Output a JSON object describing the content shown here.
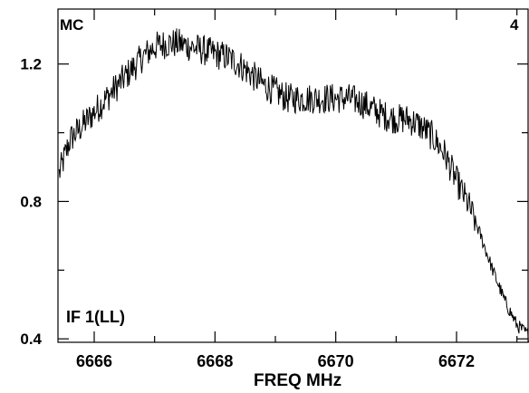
{
  "annotations": {
    "top_left": "MC",
    "top_right": "4",
    "bottom_left": "IF 1(LL)"
  },
  "chart_data": {
    "type": "line",
    "title": "",
    "xlabel": "FREQ MHz",
    "ylabel": "",
    "xlim": [
      6665.4,
      6673.2
    ],
    "ylim": [
      0.39,
      1.36
    ],
    "x_ticks": [
      6666,
      6668,
      6670,
      6672
    ],
    "x_tick_labels": [
      "6666",
      "6668",
      "6670",
      "6672"
    ],
    "x_minor_ticks": [
      6667,
      6669,
      6671,
      6673
    ],
    "y_ticks": [
      0.4,
      0.8,
      1.2
    ],
    "y_tick_labels": [
      "0.4",
      "0.8",
      "1.2"
    ],
    "y_minor_ticks": [
      0.6,
      1.0
    ],
    "grid": false,
    "series": [
      {
        "color": "#000000",
        "x": [
          6665.42,
          6665.6,
          6665.8,
          6666.0,
          6666.2,
          6666.4,
          6666.6,
          6666.8,
          6667.0,
          6667.2,
          6667.4,
          6667.6,
          6667.8,
          6668.0,
          6668.2,
          6668.4,
          6668.6,
          6668.8,
          6669.0,
          6669.2,
          6669.4,
          6669.6,
          6669.8,
          6670.0,
          6670.2,
          6670.4,
          6670.6,
          6670.8,
          6671.0,
          6671.2,
          6671.4,
          6671.6,
          6671.8,
          6672.0,
          6672.2,
          6672.4,
          6672.6,
          6672.8,
          6673.0,
          6673.2
        ],
        "values": [
          0.88,
          0.98,
          1.02,
          1.06,
          1.1,
          1.14,
          1.18,
          1.22,
          1.25,
          1.26,
          1.26,
          1.25,
          1.24,
          1.23,
          1.22,
          1.2,
          1.17,
          1.14,
          1.12,
          1.1,
          1.1,
          1.1,
          1.1,
          1.1,
          1.1,
          1.09,
          1.07,
          1.05,
          1.04,
          1.04,
          1.02,
          0.99,
          0.94,
          0.86,
          0.79,
          0.7,
          0.6,
          0.51,
          0.44,
          0.41
        ]
      }
    ]
  }
}
